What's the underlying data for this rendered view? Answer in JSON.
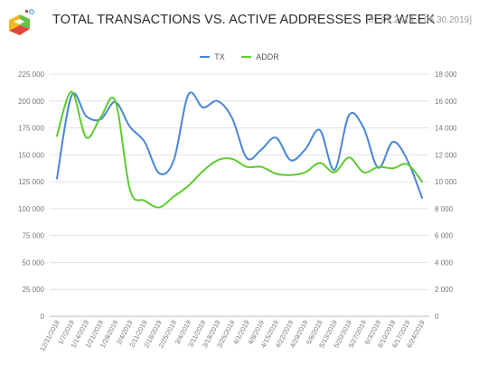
{
  "header": {
    "title": "TOTAL TRANSACTIONS VS. ACTIVE ADDRESSES PER WEEK",
    "date_range": "[01.01.2019 – 06.30.2019]",
    "logo_icon": "multicolor-cube-logo"
  },
  "colors": {
    "tx": "#4a86d8",
    "addr": "#5ccc2e",
    "grid": "#e3e3e3",
    "axis_text": "#777777",
    "logo": [
      "#f2b823",
      "#e0453c",
      "#43a7dc",
      "#62c146"
    ]
  },
  "legend": {
    "items": [
      {
        "label": "TX",
        "color": "#4a86d8"
      },
      {
        "label": "ADDR",
        "color": "#5ccc2e"
      }
    ]
  },
  "chart_data": {
    "type": "line",
    "title": "TOTAL TRANSACTIONS VS. ACTIVE ADDRESSES PER WEEK",
    "x": [
      "12/31/2018",
      "1/7/2019",
      "1/14/2019",
      "1/21/2019",
      "1/28/2019",
      "2/4/2019",
      "2/11/2019",
      "2/18/2019",
      "2/25/2019",
      "3/4/2019",
      "3/11/2019",
      "3/18/2019",
      "3/25/2019",
      "4/1/2019",
      "4/8/2019",
      "4/15/2019",
      "4/22/2019",
      "4/29/2019",
      "5/6/2019",
      "5/13/2019",
      "5/20/2019",
      "5/27/2019",
      "6/3/2019",
      "6/10/2019",
      "6/17/2019",
      "6/24/2019"
    ],
    "series": [
      {
        "name": "TX",
        "axis": "left",
        "values": [
          128000,
          205000,
          186000,
          183000,
          199000,
          176000,
          162000,
          133000,
          145000,
          206000,
          194000,
          200000,
          184000,
          147000,
          155000,
          166000,
          145000,
          155000,
          173000,
          136000,
          187000,
          175000,
          138000,
          162000,
          145000,
          110000
        ]
      },
      {
        "name": "ADDR",
        "axis": "right",
        "values": [
          13400,
          16700,
          13300,
          14800,
          16000,
          9400,
          8600,
          8100,
          8900,
          9700,
          10800,
          11600,
          11700,
          11100,
          11100,
          10600,
          10500,
          10700,
          11400,
          10700,
          11800,
          10700,
          11100,
          11000,
          11300,
          10000
        ]
      }
    ],
    "y_left": {
      "ylim": [
        0,
        225000
      ],
      "ticks": [
        "0",
        "25 000",
        "50 000",
        "75 000",
        "100 000",
        "125 000",
        "150 000",
        "175 000",
        "200 000",
        "225 000"
      ]
    },
    "y_right": {
      "ylim": [
        0,
        18000
      ],
      "ticks": [
        "0",
        "2 000",
        "4 000",
        "6 000",
        "8 000",
        "10 000",
        "12 000",
        "14 000",
        "16 000",
        "18 000"
      ]
    },
    "grid": true,
    "legend_position": "top-center"
  }
}
